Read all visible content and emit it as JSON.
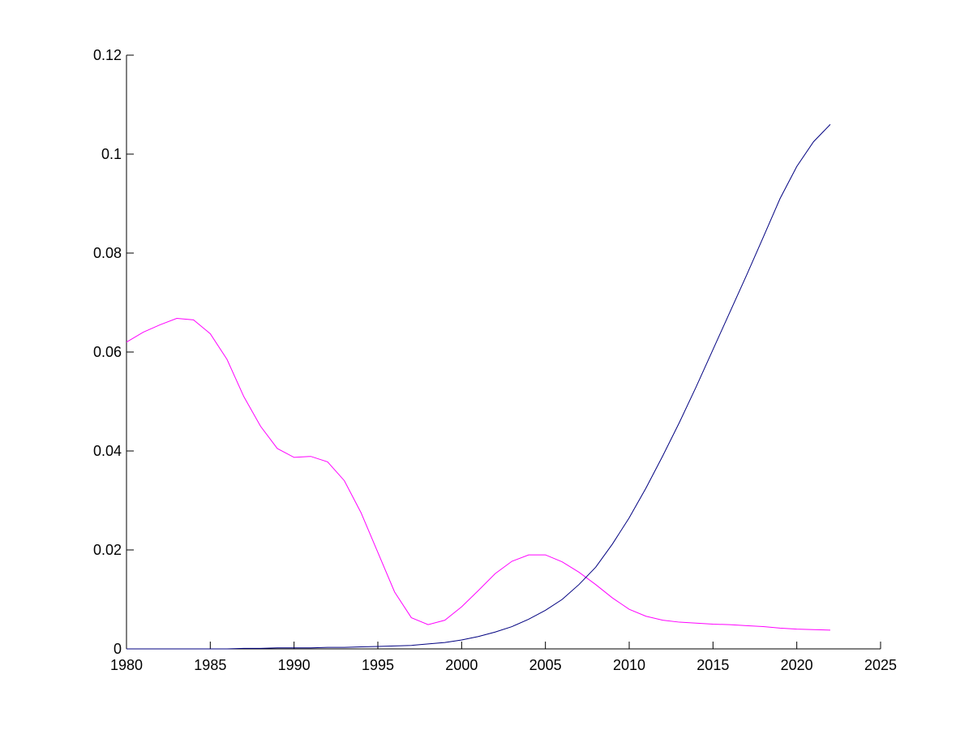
{
  "chart_data": {
    "type": "line",
    "x": [
      1980,
      1981,
      1982,
      1983,
      1984,
      1985,
      1986,
      1987,
      1988,
      1989,
      1990,
      1991,
      1992,
      1993,
      1994,
      1995,
      1996,
      1997,
      1998,
      1999,
      2000,
      2001,
      2002,
      2003,
      2004,
      2005,
      2006,
      2007,
      2008,
      2009,
      2010,
      2011,
      2012,
      2013,
      2014,
      2015,
      2016,
      2017,
      2018,
      2019,
      2020,
      2021,
      2022
    ],
    "series": [
      {
        "color": "#ff00ff",
        "values": [
          0.062,
          0.064,
          0.0655,
          0.0668,
          0.0665,
          0.0637,
          0.0585,
          0.051,
          0.045,
          0.0405,
          0.0387,
          0.0389,
          0.0378,
          0.034,
          0.0275,
          0.0195,
          0.0115,
          0.0063,
          0.0049,
          0.0058,
          0.0085,
          0.0118,
          0.0152,
          0.0177,
          0.019,
          0.019,
          0.0176,
          0.0155,
          0.013,
          0.0103,
          0.008,
          0.0066,
          0.0058,
          0.0054,
          0.0052,
          0.005,
          0.0049,
          0.0047,
          0.0045,
          0.0042,
          0.004,
          0.0039,
          0.0038
        ]
      },
      {
        "color": "#000080",
        "values": [
          0,
          0,
          0,
          0,
          0,
          0,
          0,
          0.0001,
          0.0001,
          0.0002,
          0.0002,
          0.0002,
          0.0003,
          0.0003,
          0.0004,
          0.0005,
          0.0006,
          0.0007,
          0.001,
          0.0013,
          0.0018,
          0.0025,
          0.0034,
          0.0045,
          0.006,
          0.0078,
          0.01,
          0.013,
          0.0165,
          0.0212,
          0.0265,
          0.0325,
          0.039,
          0.0458,
          0.053,
          0.0605,
          0.068,
          0.0755,
          0.0832,
          0.091,
          0.0975,
          0.1025,
          0.106
        ]
      }
    ],
    "xlim": [
      1980,
      2025
    ],
    "xticks": [
      1980,
      1985,
      1990,
      1995,
      2000,
      2005,
      2010,
      2015,
      2020,
      2025
    ],
    "ylim": [
      0,
      0.12
    ],
    "yticks": [
      0,
      0.02,
      0.04,
      0.06,
      0.08,
      0.1,
      0.12
    ]
  }
}
